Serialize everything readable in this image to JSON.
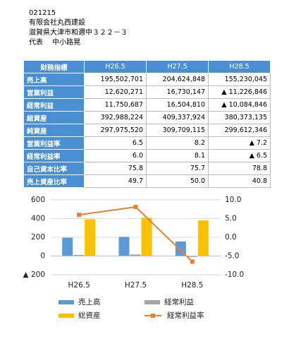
{
  "header": {
    "lines": [
      "021215",
      "有限会社丸西建設",
      "滋賀県大津市和邇中３２２－３",
      "代表　 中小路晃"
    ]
  },
  "table": {
    "header": [
      "財務指標",
      "H26.5",
      "H27.5",
      "H28.5"
    ],
    "rows": [
      [
        "売上高",
        "195,502,701",
        "204,624,848",
        "155,230,045"
      ],
      [
        "営業利益",
        "12,620,271",
        "16,730,147",
        "▲ 11,226,846"
      ],
      [
        "経常利益",
        "11,750,687",
        "16,504,810",
        "▲ 10,084,846"
      ],
      [
        "総資産",
        "392,988,224",
        "409,337,924",
        "380,373,135"
      ],
      [
        "純資産",
        "297,975,520",
        "309,709,115",
        "299,612,346"
      ],
      [
        "営業利益率",
        "6.5",
        "8.2",
        "▲ 7.2"
      ],
      [
        "経常利益率",
        "6.0",
        "8.1",
        "▲ 6.5"
      ],
      [
        "自己資本比率",
        "75.8",
        "75.7",
        "78.8"
      ],
      [
        "売上資産比率",
        "49.7",
        "50.0",
        "40.8"
      ]
    ]
  },
  "chart_data": {
    "type": "bar",
    "categories": [
      "H26.5",
      "H27.5",
      "H28.5"
    ],
    "series": [
      {
        "name": "売上高",
        "color": "#5b9bd5",
        "values": [
          195.5,
          204.6,
          155.2
        ]
      },
      {
        "name": "経常利益",
        "color": "#a5a5a5",
        "values": [
          11.75,
          16.5,
          -10.08
        ]
      },
      {
        "name": "総資産",
        "color": "#ffc000",
        "values": [
          393.0,
          409.3,
          380.4
        ]
      },
      {
        "name": "経常利益率",
        "color": "#ed7d31",
        "type": "line",
        "axis": "y2",
        "values": [
          6.0,
          8.1,
          -6.5
        ]
      }
    ],
    "ylim": [
      -200,
      600
    ],
    "yticks": [
      600,
      400,
      200,
      0,
      {
        "value": -200,
        "label": "▲ 200"
      }
    ],
    "y2lim": [
      -10,
      10
    ],
    "y2ticks": [
      {
        "value": 10,
        "label": "10.0"
      },
      {
        "value": 5,
        "label": "5.0"
      },
      {
        "value": 0,
        "label": "0.0"
      },
      {
        "value": -5,
        "label": "-5.0"
      },
      {
        "value": -10,
        "label": "-10.0"
      }
    ],
    "grid": true
  }
}
